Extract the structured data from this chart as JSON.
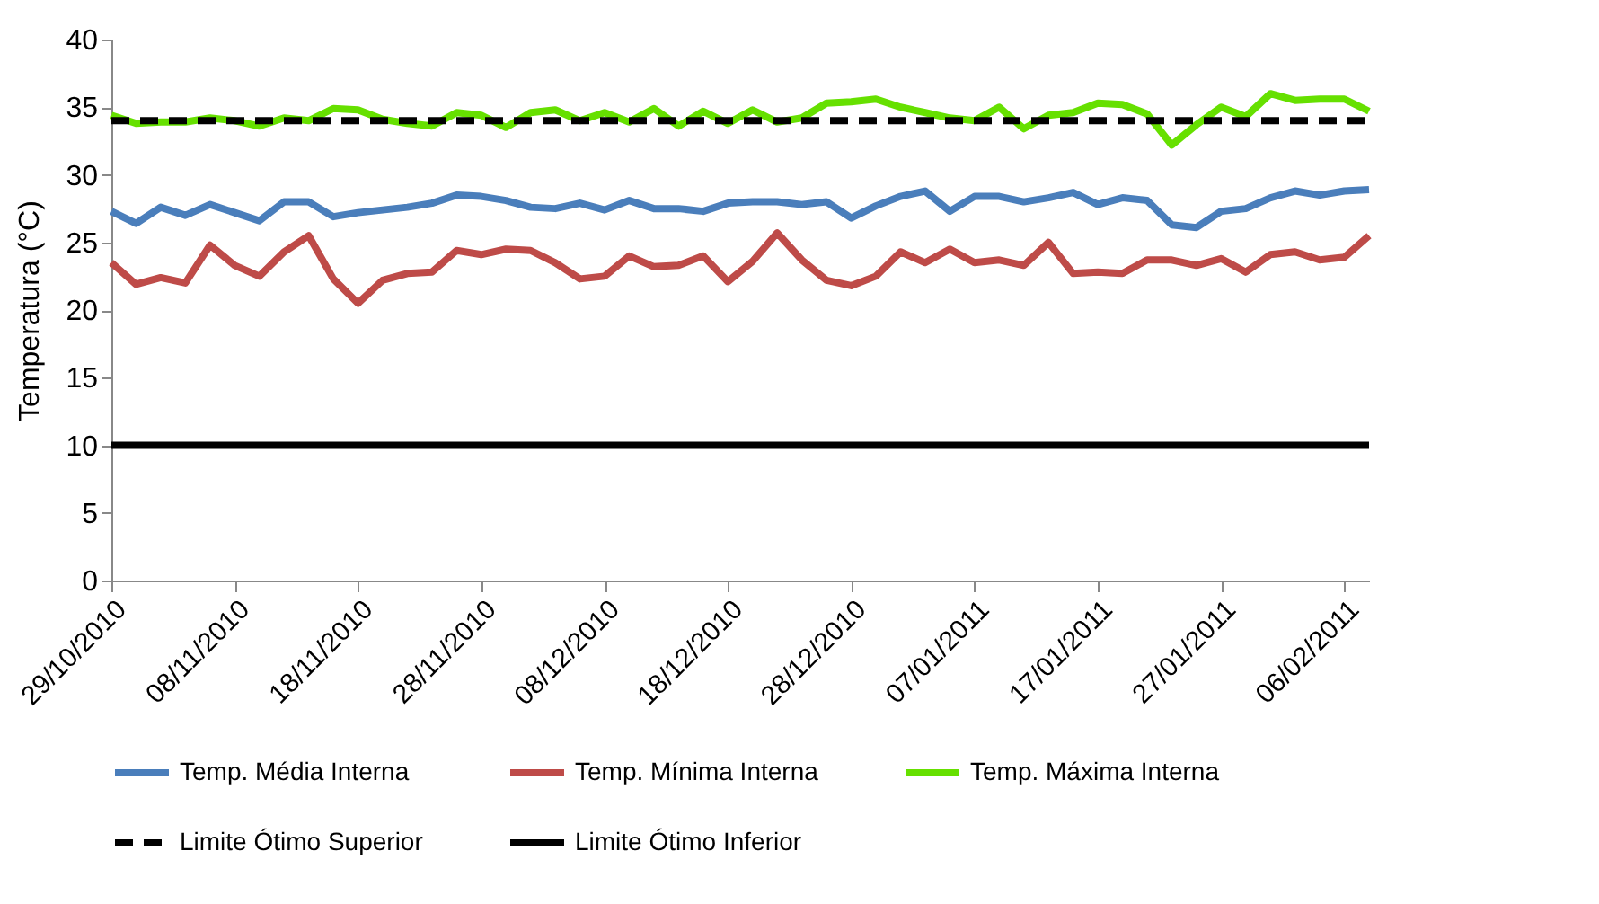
{
  "chart_data": {
    "type": "line",
    "ylabel": "Temperatura (°C)",
    "x": [
      "2010-10-29",
      "2010-10-31",
      "2010-11-02",
      "2010-11-04",
      "2010-11-06",
      "2010-11-08",
      "2010-11-10",
      "2010-11-12",
      "2010-11-14",
      "2010-11-16",
      "2010-11-18",
      "2010-11-20",
      "2010-11-22",
      "2010-11-24",
      "2010-11-26",
      "2010-11-28",
      "2010-11-30",
      "2010-12-02",
      "2010-12-04",
      "2010-12-06",
      "2010-12-08",
      "2010-12-10",
      "2010-12-12",
      "2010-12-14",
      "2010-12-16",
      "2010-12-18",
      "2010-12-20",
      "2010-12-22",
      "2010-12-24",
      "2010-12-26",
      "2010-12-28",
      "2010-12-30",
      "2011-01-01",
      "2011-01-03",
      "2011-01-05",
      "2011-01-07",
      "2011-01-09",
      "2011-01-11",
      "2011-01-13",
      "2011-01-15",
      "2011-01-17",
      "2011-01-19",
      "2011-01-21",
      "2011-01-23",
      "2011-01-25",
      "2011-01-27",
      "2011-01-29",
      "2011-01-31",
      "2011-02-02",
      "2011-02-04",
      "2011-02-06",
      "2011-02-08"
    ],
    "series": [
      {
        "name": "Temp. Média Interna",
        "color": "#4a7ebb",
        "values": [
          27.3,
          26.4,
          27.6,
          27.0,
          27.8,
          27.2,
          26.6,
          28.0,
          28.0,
          26.9,
          27.2,
          27.4,
          27.6,
          27.9,
          28.5,
          28.4,
          28.1,
          27.6,
          27.5,
          27.9,
          27.4,
          28.1,
          27.5,
          27.5,
          27.3,
          27.9,
          28.0,
          28.0,
          27.8,
          28.0,
          26.8,
          27.7,
          28.4,
          28.8,
          27.3,
          28.4,
          28.4,
          28.0,
          28.3,
          28.7,
          27.8,
          28.3,
          28.1,
          26.3,
          26.1,
          27.3,
          27.5,
          28.3,
          28.8,
          28.5,
          28.8,
          28.9
        ]
      },
      {
        "name": "Temp. Mínima Interna",
        "color": "#be4b48",
        "values": [
          23.5,
          21.9,
          22.4,
          22.0,
          24.8,
          23.3,
          22.5,
          24.3,
          25.5,
          22.3,
          20.5,
          22.2,
          22.7,
          22.8,
          24.4,
          24.1,
          24.5,
          24.4,
          23.5,
          22.3,
          22.5,
          24.0,
          23.2,
          23.3,
          24.0,
          22.1,
          23.6,
          25.7,
          23.7,
          22.2,
          21.8,
          22.5,
          24.3,
          23.5,
          24.5,
          23.5,
          23.7,
          23.3,
          25.0,
          22.7,
          22.8,
          22.7,
          23.7,
          23.7,
          23.3,
          23.8,
          22.8,
          24.1,
          24.3,
          23.7,
          23.9,
          25.5
        ]
      },
      {
        "name": "Temp. Máxima Interna",
        "color": "#66e000",
        "values": [
          34.4,
          33.8,
          33.9,
          33.9,
          34.2,
          34.0,
          33.6,
          34.2,
          34.0,
          34.9,
          34.8,
          34.1,
          33.8,
          33.6,
          34.6,
          34.4,
          33.5,
          34.6,
          34.8,
          34.0,
          34.6,
          33.9,
          34.9,
          33.6,
          34.7,
          33.8,
          34.8,
          33.9,
          34.2,
          35.3,
          35.4,
          35.6,
          35.0,
          34.6,
          34.2,
          34.0,
          35.0,
          33.4,
          34.4,
          34.6,
          35.3,
          35.2,
          34.5,
          32.2,
          33.7,
          35.0,
          34.3,
          36.0,
          35.5,
          35.6,
          35.6,
          34.7
        ]
      }
    ],
    "ref_lines": [
      {
        "axis": "y",
        "value": 34,
        "label": "Limite Ótimo Superior",
        "color": "#000000",
        "line_style": "dashed"
      },
      {
        "axis": "y",
        "value": 10,
        "label": "Limite Ótimo Inferior",
        "color": "#000000",
        "line_style": "solid"
      }
    ],
    "xlim": [
      "2010-10-29",
      "2011-02-08"
    ],
    "xticks": [
      {
        "value": "2010-10-29",
        "label": "29/10/2010"
      },
      {
        "value": "2010-11-08",
        "label": "08/11/2010"
      },
      {
        "value": "2010-11-18",
        "label": "18/11/2010"
      },
      {
        "value": "2010-11-28",
        "label": "28/11/2010"
      },
      {
        "value": "2010-12-08",
        "label": "08/12/2010"
      },
      {
        "value": "2010-12-18",
        "label": "18/12/2010"
      },
      {
        "value": "2010-12-28",
        "label": "28/12/2010"
      },
      {
        "value": "2011-01-07",
        "label": "07/01/2011"
      },
      {
        "value": "2011-01-17",
        "label": "17/01/2011"
      },
      {
        "value": "2011-01-27",
        "label": "27/01/2011"
      },
      {
        "value": "2011-02-06",
        "label": "06/02/2011"
      }
    ],
    "ylim": [
      0,
      40
    ],
    "yticks": [
      0,
      5,
      10,
      15,
      20,
      25,
      30,
      35,
      40
    ],
    "grid": false,
    "legend": "bottom",
    "marker": "none",
    "line_style": "solid"
  }
}
